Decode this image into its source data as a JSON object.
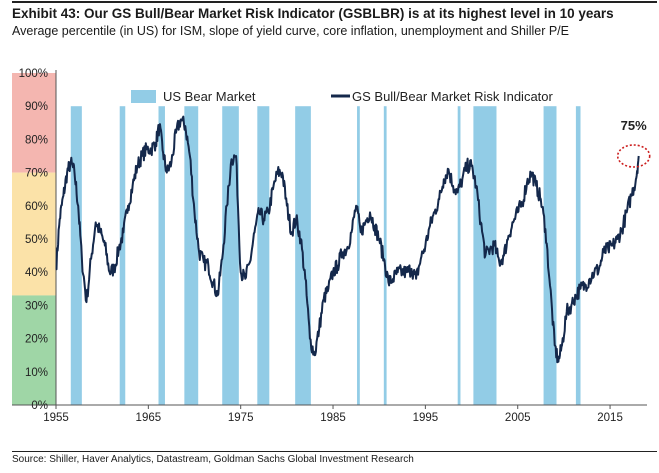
{
  "header": {
    "title": "Exhibit 43: Our GS Bull/Bear Market Risk Indicator (GSBLBR) is at its highest level in 10 years",
    "subtitle": "Average percentile (in US) for ISM, slope of yield curve, core inflation, unemployment and Shiller P/E"
  },
  "footer": {
    "source": "Source: Shiller, Haver Analytics, Datastream, Goldman Sachs Global Investment Research"
  },
  "colors": {
    "zone_red": "#f4b6b0",
    "zone_yellow": "#fbe2a8",
    "zone_green": "#9fd6a6",
    "bear": "#92cce6",
    "line": "#14284b",
    "annotation": "#cc1f1f"
  },
  "chart_data": {
    "type": "line",
    "title": "",
    "xlabel": "",
    "ylabel": "",
    "xlim": [
      1955,
      2019
    ],
    "ylim": [
      0,
      100
    ],
    "x_ticks": [
      "1955",
      "1965",
      "1975",
      "1985",
      "1995",
      "2005",
      "2015"
    ],
    "y_ticks": [
      "0%",
      "10%",
      "20%",
      "30%",
      "40%",
      "50%",
      "60%",
      "70%",
      "80%",
      "90%",
      "100%"
    ],
    "legend": {
      "placement": "top",
      "entries": [
        "US Bear Market",
        "GS Bull/Bear Market Risk Indicator"
      ]
    },
    "background_zones": [
      {
        "from": 70,
        "to": 100,
        "color": "red"
      },
      {
        "from": 33,
        "to": 70,
        "color": "yellow"
      },
      {
        "from": 0,
        "to": 33,
        "color": "green"
      }
    ],
    "bear_markets": [
      [
        1956.6,
        1957.8
      ],
      [
        1961.9,
        1962.5
      ],
      [
        1966.1,
        1966.8
      ],
      [
        1968.9,
        1970.4
      ],
      [
        1973.0,
        1974.8
      ],
      [
        1976.8,
        1978.1
      ],
      [
        1980.9,
        1982.6
      ],
      [
        1987.6,
        1987.9
      ],
      [
        1990.5,
        1990.8
      ],
      [
        1998.5,
        1998.8
      ],
      [
        2000.2,
        2002.7
      ],
      [
        2007.8,
        2009.2
      ],
      [
        2011.3,
        2011.8
      ]
    ],
    "annotation": {
      "label": "75%",
      "x": 2018.1,
      "y": 75
    },
    "series": [
      {
        "name": "GS Bull/Bear Market Risk Indicator",
        "points": [
          [
            1955.0,
            41
          ],
          [
            1955.4,
            56
          ],
          [
            1955.8,
            63
          ],
          [
            1956.2,
            70
          ],
          [
            1956.6,
            73
          ],
          [
            1957.0,
            70
          ],
          [
            1957.4,
            60
          ],
          [
            1957.8,
            44
          ],
          [
            1958.3,
            31
          ],
          [
            1958.8,
            44
          ],
          [
            1959.3,
            55
          ],
          [
            1959.8,
            52
          ],
          [
            1960.3,
            48
          ],
          [
            1960.8,
            40
          ],
          [
            1961.3,
            41
          ],
          [
            1961.8,
            47
          ],
          [
            1962.3,
            52
          ],
          [
            1962.8,
            60
          ],
          [
            1963.3,
            66
          ],
          [
            1963.8,
            72
          ],
          [
            1964.3,
            75
          ],
          [
            1964.8,
            77
          ],
          [
            1965.3,
            77
          ],
          [
            1965.8,
            79
          ],
          [
            1966.2,
            84
          ],
          [
            1966.6,
            76
          ],
          [
            1967.0,
            70
          ],
          [
            1967.5,
            73
          ],
          [
            1968.0,
            82
          ],
          [
            1968.5,
            86
          ],
          [
            1969.0,
            84
          ],
          [
            1969.5,
            75
          ],
          [
            1970.0,
            58
          ],
          [
            1970.5,
            46
          ],
          [
            1971.0,
            43
          ],
          [
            1971.5,
            42
          ],
          [
            1972.0,
            37
          ],
          [
            1972.5,
            33
          ],
          [
            1973.0,
            44
          ],
          [
            1973.5,
            60
          ],
          [
            1974.0,
            74
          ],
          [
            1974.5,
            75
          ],
          [
            1975.0,
            40
          ],
          [
            1975.5,
            38
          ],
          [
            1976.0,
            43
          ],
          [
            1976.5,
            52
          ],
          [
            1977.0,
            58
          ],
          [
            1977.5,
            56
          ],
          [
            1978.0,
            58
          ],
          [
            1978.5,
            65
          ],
          [
            1979.0,
            70
          ],
          [
            1979.5,
            70
          ],
          [
            1980.0,
            60
          ],
          [
            1980.5,
            52
          ],
          [
            1981.0,
            56
          ],
          [
            1981.5,
            50
          ],
          [
            1982.0,
            38
          ],
          [
            1982.5,
            20
          ],
          [
            1983.0,
            15
          ],
          [
            1983.5,
            23
          ],
          [
            1984.0,
            32
          ],
          [
            1984.5,
            35
          ],
          [
            1985.0,
            40
          ],
          [
            1985.5,
            42
          ],
          [
            1986.0,
            46
          ],
          [
            1986.5,
            47
          ],
          [
            1987.0,
            52
          ],
          [
            1987.5,
            60
          ],
          [
            1988.0,
            52
          ],
          [
            1988.5,
            55
          ],
          [
            1989.0,
            58
          ],
          [
            1989.5,
            54
          ],
          [
            1990.0,
            50
          ],
          [
            1990.5,
            44
          ],
          [
            1991.0,
            37
          ],
          [
            1991.5,
            38
          ],
          [
            1992.0,
            40
          ],
          [
            1992.5,
            40
          ],
          [
            1993.0,
            40
          ],
          [
            1993.5,
            41
          ],
          [
            1994.0,
            38
          ],
          [
            1994.5,
            44
          ],
          [
            1995.0,
            48
          ],
          [
            1995.5,
            54
          ],
          [
            1996.0,
            58
          ],
          [
            1996.5,
            62
          ],
          [
            1997.0,
            68
          ],
          [
            1997.5,
            71
          ],
          [
            1998.0,
            66
          ],
          [
            1998.5,
            64
          ],
          [
            1999.0,
            68
          ],
          [
            1999.5,
            72
          ],
          [
            2000.0,
            72
          ],
          [
            2000.5,
            66
          ],
          [
            2001.0,
            55
          ],
          [
            2001.5,
            45
          ],
          [
            2002.0,
            47
          ],
          [
            2002.5,
            48
          ],
          [
            2003.0,
            43
          ],
          [
            2003.5,
            45
          ],
          [
            2004.0,
            51
          ],
          [
            2004.5,
            55
          ],
          [
            2005.0,
            58
          ],
          [
            2005.5,
            61
          ],
          [
            2006.0,
            67
          ],
          [
            2006.5,
            70
          ],
          [
            2007.0,
            66
          ],
          [
            2007.5,
            62
          ],
          [
            2008.0,
            53
          ],
          [
            2008.5,
            36
          ],
          [
            2009.0,
            18
          ],
          [
            2009.4,
            13
          ],
          [
            2009.8,
            18
          ],
          [
            2010.3,
            28
          ],
          [
            2010.8,
            30
          ],
          [
            2011.3,
            33
          ],
          [
            2011.8,
            35
          ],
          [
            2012.3,
            36
          ],
          [
            2012.8,
            38
          ],
          [
            2013.3,
            40
          ],
          [
            2013.8,
            41
          ],
          [
            2014.3,
            46
          ],
          [
            2014.8,
            47
          ],
          [
            2015.3,
            48
          ],
          [
            2015.8,
            50
          ],
          [
            2016.3,
            53
          ],
          [
            2016.8,
            58
          ],
          [
            2017.3,
            63
          ],
          [
            2017.8,
            68
          ],
          [
            2018.1,
            75
          ]
        ]
      }
    ]
  }
}
